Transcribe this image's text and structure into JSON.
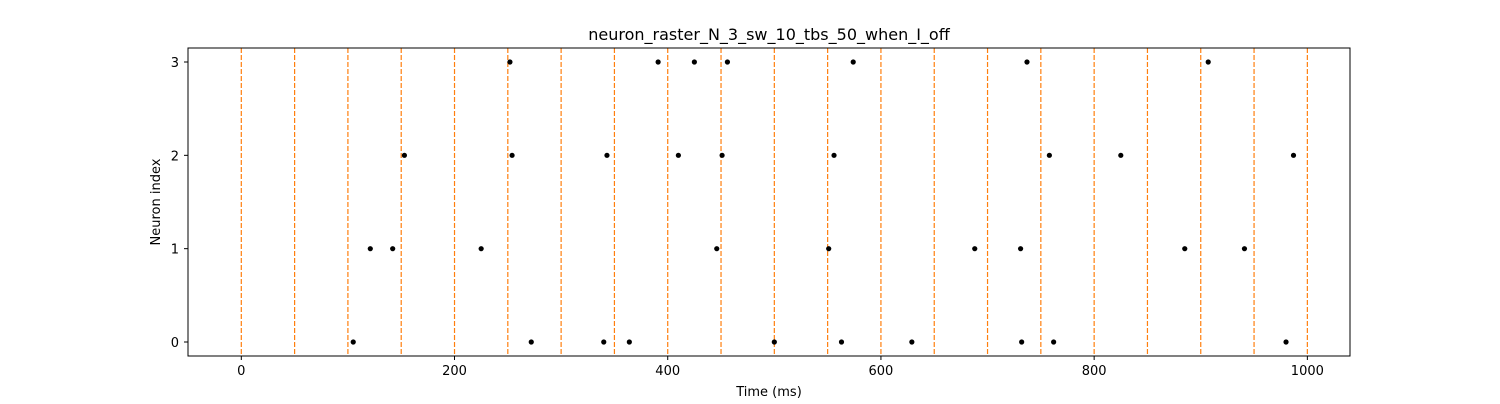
{
  "chart_data": {
    "type": "scatter",
    "title": "neuron_raster_N_3_sw_10_tbs_50_when_I_off",
    "xlabel": "Time (ms)",
    "ylabel": "Neuron index",
    "xlim": [
      -50,
      1040
    ],
    "ylim": [
      -0.15,
      3.15
    ],
    "xticks": [
      0,
      200,
      400,
      600,
      800,
      1000
    ],
    "yticks": [
      0,
      1,
      2,
      3
    ],
    "grid": false,
    "legend": "none",
    "marker_color": "#000000",
    "vline_color": "#ff7f0e",
    "vline_style": "dashed",
    "vlines": [
      0,
      50,
      100,
      150,
      200,
      250,
      300,
      350,
      400,
      450,
      500,
      550,
      600,
      650,
      700,
      750,
      800,
      850,
      900,
      950,
      1000
    ],
    "series": [
      {
        "values": [
          {
            "x": 105,
            "y": 0
          },
          {
            "x": 272,
            "y": 0
          },
          {
            "x": 340,
            "y": 0
          },
          {
            "x": 364,
            "y": 0
          },
          {
            "x": 500,
            "y": 0
          },
          {
            "x": 563,
            "y": 0
          },
          {
            "x": 629,
            "y": 0
          },
          {
            "x": 732,
            "y": 0
          },
          {
            "x": 762,
            "y": 0
          },
          {
            "x": 980,
            "y": 0
          },
          {
            "x": 121,
            "y": 1
          },
          {
            "x": 142,
            "y": 1
          },
          {
            "x": 225,
            "y": 1
          },
          {
            "x": 446,
            "y": 1
          },
          {
            "x": 551,
            "y": 1
          },
          {
            "x": 688,
            "y": 1
          },
          {
            "x": 731,
            "y": 1
          },
          {
            "x": 885,
            "y": 1
          },
          {
            "x": 941,
            "y": 1
          },
          {
            "x": 153,
            "y": 2
          },
          {
            "x": 254,
            "y": 2
          },
          {
            "x": 343,
            "y": 2
          },
          {
            "x": 410,
            "y": 2
          },
          {
            "x": 451,
            "y": 2
          },
          {
            "x": 556,
            "y": 2
          },
          {
            "x": 758,
            "y": 2
          },
          {
            "x": 825,
            "y": 2
          },
          {
            "x": 987,
            "y": 2
          },
          {
            "x": 252,
            "y": 3
          },
          {
            "x": 391,
            "y": 3
          },
          {
            "x": 425,
            "y": 3
          },
          {
            "x": 456,
            "y": 3
          },
          {
            "x": 574,
            "y": 3
          },
          {
            "x": 737,
            "y": 3
          },
          {
            "x": 907,
            "y": 3
          }
        ]
      }
    ]
  }
}
